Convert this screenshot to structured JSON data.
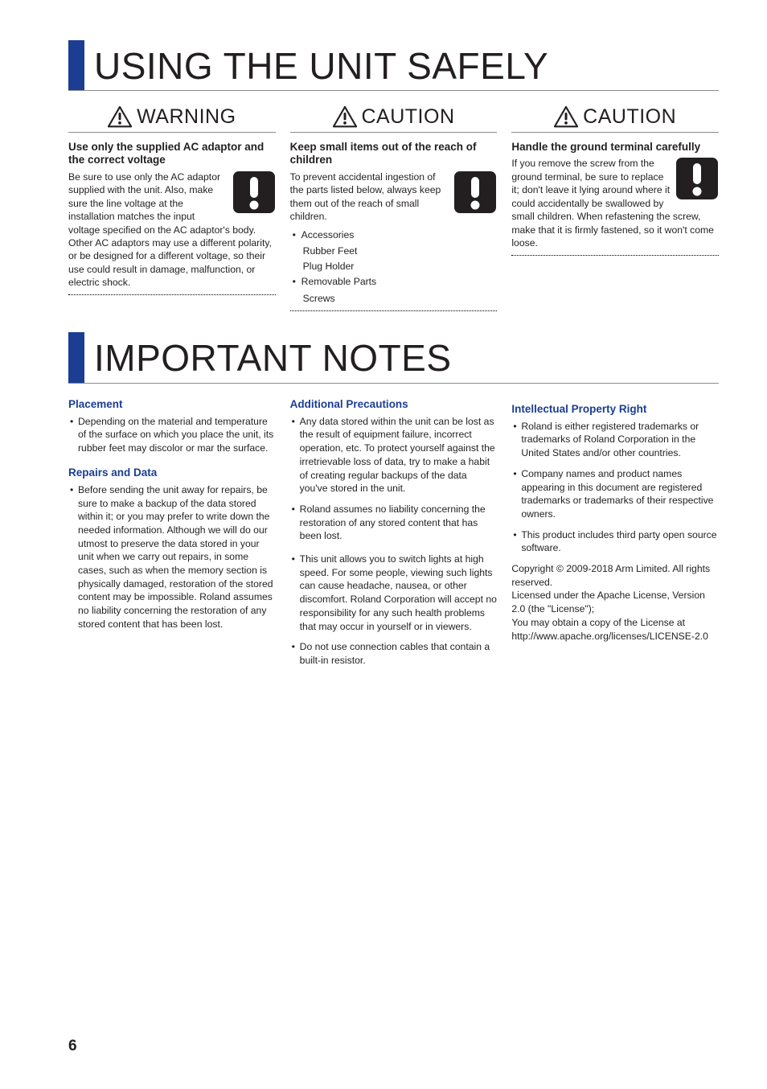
{
  "page_number": "6",
  "section1": {
    "title": "USING THE UNIT SAFELY",
    "columns": [
      {
        "label": "WARNING",
        "blocks": [
          {
            "heading": "Use only the supplied AC adaptor and the correct voltage",
            "wrapped_text": "Be sure to use only the AC adaptor supplied with the unit. Also, make sure the line voltage at the installation matches the input voltage specified on",
            "after_text": "the AC adaptor's body. Other AC adaptors may use a different polarity, or be designed for a different voltage, so their use could result in damage, malfunction, or electric shock."
          }
        ]
      },
      {
        "label": "CAUTION",
        "blocks": [
          {
            "heading": "Keep small items out of the reach of children",
            "wrapped_text": "To prevent accidental ingestion of the parts listed below, always keep them out of the reach of small children.",
            "bullets": [
              {
                "label": "Accessories",
                "subs": [
                  "Rubber Feet",
                  "Plug Holder"
                ]
              },
              {
                "label": "Removable Parts",
                "subs": [
                  "Screws"
                ]
              }
            ]
          }
        ]
      },
      {
        "label": "CAUTION",
        "blocks": [
          {
            "heading": "Handle the ground terminal carefully",
            "wrapped_text": "If you remove the screw from the ground terminal, be sure to replace it; don't leave it lying around where it could accidentally be swallowed by small",
            "after_text": "children. When refastening the screw, make that it is firmly fastened, so it won't come loose."
          }
        ]
      }
    ]
  },
  "section2": {
    "title": "IMPORTANT NOTES",
    "columns": [
      [
        {
          "heading": "Placement",
          "items": [
            "Depending on the material and temperature of the surface on which you place the unit, its rubber feet may discolor or mar the surface."
          ]
        },
        {
          "heading": "Repairs and Data",
          "items": [
            "Before sending the unit away for repairs, be sure to make a backup of the data stored within it; or you may prefer to write down the needed information. Although we will do our utmost to preserve the data stored in your unit when we carry out repairs, in some cases, such as when the memory section is physically damaged, restoration of the stored content may be impossible. Roland assumes no liability concerning the restoration of any stored content that has been lost."
          ]
        }
      ],
      [
        {
          "heading": "Additional Precautions",
          "items": [
            "Any data stored within the unit can be lost as the result of equipment failure, incorrect operation, etc. To protect yourself against the irretrievable loss of data, try to make a habit of creating regular backups of the data you've stored in the unit.",
            "Roland assumes no liability concerning the restoration of any stored content that has been lost."
          ]
        },
        {
          "heading": null,
          "items": [
            "This unit allows you to switch lights at high speed. For some people, viewing such lights can cause headache, nausea, or other discomfort. Roland Corporation will accept no responsibility for any such health problems that may occur in yourself or in viewers.",
            "Do not use connection cables that contain a built-in resistor."
          ]
        }
      ],
      [
        {
          "heading": "Intellectual Property Right",
          "items": [
            "Roland is either registered trademarks or trademarks of Roland Corporation in the United States and/or other countries.",
            "Company names and product names appearing in this document are registered trademarks or trademarks of their respective owners.",
            "This product includes third party open source software."
          ],
          "plain": [
            "Copyright © 2009-2018 Arm Limited. All rights reserved.",
            "Licensed under the Apache License, Version 2.0 (the \"License\");",
            "You may obtain a copy of the License at http://www.apache.org/licenses/LICENSE-2.0"
          ]
        }
      ]
    ]
  },
  "icons": {
    "triangle_svg": "<svg viewBox='0 0 32 28'><path d='M16 1 L31 27 L1 27 Z' fill='none' stroke='#231f20' stroke-width='2.2' stroke-linejoin='round'/><rect x='14.4' y='8.5' width='3.2' height='10' fill='#231f20' rx='1.5'/><circle cx='16' cy='22.2' r='2' fill='#231f20'/></svg>",
    "square_svg": "<svg viewBox='0 0 54 54'><rect x='1' y='1' width='52' height='52' rx='7' fill='#231f20'/><rect x='22' y='8' width='10' height='26' fill='#fff' rx='5'/><circle cx='27' cy='43' r='5.5' fill='#fff'/></svg>"
  }
}
